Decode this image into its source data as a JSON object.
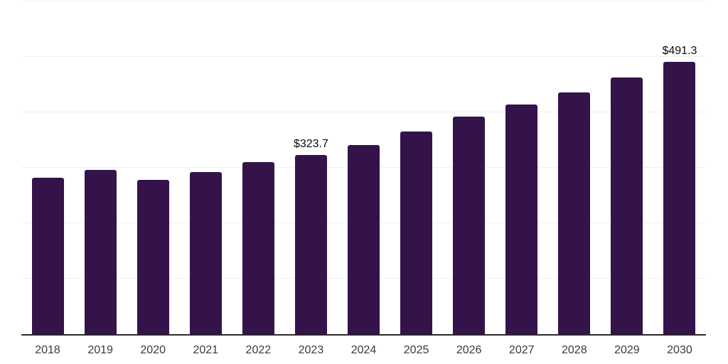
{
  "chart_data": {
    "type": "bar",
    "title": "",
    "xlabel": "",
    "ylabel": "",
    "categories": [
      "2018",
      "2019",
      "2020",
      "2021",
      "2022",
      "2023",
      "2024",
      "2025",
      "2026",
      "2027",
      "2028",
      "2029",
      "2030"
    ],
    "values": [
      282.0,
      296.3,
      278.0,
      292.9,
      310.3,
      323.7,
      340.6,
      365.0,
      391.9,
      414.0,
      435.9,
      462.2,
      491.3
    ],
    "point_labels": {
      "2023": "$323.7",
      "2030": "$491.3"
    },
    "ylim": [
      0,
      600
    ],
    "y_gridlines": [
      100,
      200,
      300,
      400,
      500,
      600
    ],
    "grid": "horizontal",
    "legend": "none",
    "colors": {
      "bar": "#34134B",
      "gridline": "#f0f0f0",
      "axis_line": "#2b2b2b",
      "tick_label": "#3a3a3a",
      "data_label": "#0a0a0a",
      "background": "#ffffff"
    }
  }
}
